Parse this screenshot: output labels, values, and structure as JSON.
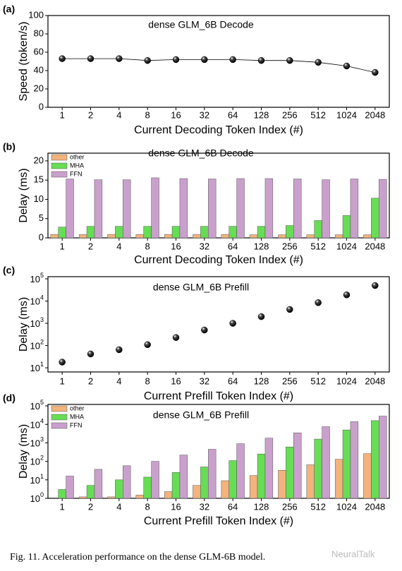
{
  "chart_data": [
    {
      "type": "line",
      "panel": "(a)",
      "annotation": "dense GLM_6B  Decode",
      "y_label": "Speed (token/s)",
      "x_label": "Current Decoding Token Index (#)",
      "categories": [
        "1",
        "2",
        "4",
        "8",
        "16",
        "32",
        "64",
        "128",
        "256",
        "512",
        "1024",
        "2048"
      ],
      "values": [
        53,
        53,
        53,
        51,
        52,
        52,
        52,
        51,
        51,
        49,
        45,
        38
      ],
      "color": "#000000",
      "ylim": [
        0,
        100
      ],
      "yticks": [
        0,
        20,
        40,
        60,
        80,
        100
      ]
    },
    {
      "type": "bar",
      "panel": "(b)",
      "annotation": "dense GLM_6B  Decode",
      "y_label": "Delay (ms)",
      "x_label": "Current Decoding Token Index (#)",
      "categories": [
        "1",
        "2",
        "4",
        "8",
        "16",
        "32",
        "64",
        "128",
        "256",
        "512",
        "1024",
        "2048"
      ],
      "series": [
        {
          "name": "other",
          "color": "#f2b37c",
          "values": [
            0.9,
            0.9,
            0.9,
            0.9,
            0.9,
            0.9,
            0.9,
            0.8,
            0.8,
            0.8,
            0.8,
            0.8
          ]
        },
        {
          "name": "MHA",
          "color": "#66dd55",
          "values": [
            2.8,
            3.0,
            3.0,
            3.0,
            3.0,
            3.0,
            3.0,
            3.0,
            3.2,
            4.5,
            5.8,
            10.3
          ]
        },
        {
          "name": "FFN",
          "color": "#c9a0cc",
          "values": [
            15.3,
            15.1,
            15.1,
            15.6,
            15.4,
            15.3,
            15.4,
            15.4,
            15.3,
            15.1,
            15.3,
            15.2
          ]
        }
      ],
      "ylim": [
        0,
        22
      ],
      "yticks": [
        0,
        5,
        10,
        15,
        20
      ],
      "legend": "upper-left"
    },
    {
      "type": "scatter",
      "panel": "(c)",
      "annotation": "dense GLM_6B  Prefill",
      "y_label": "Delay (ms)",
      "x_label": "Current Prefill Token Index (#)",
      "categories": [
        "1",
        "2",
        "4",
        "8",
        "16",
        "32",
        "64",
        "128",
        "256",
        "512",
        "1024",
        "2048"
      ],
      "values": [
        18,
        42,
        65,
        110,
        230,
        500,
        1000,
        2000,
        4200,
        8500,
        19000,
        50000
      ],
      "color": "#000000",
      "log_y": true,
      "ylim": [
        6.5,
        125000
      ],
      "yticks": [
        {
          "value": 10,
          "label": "10",
          "sup": "1"
        },
        {
          "value": 100,
          "label": "10",
          "sup": "2"
        },
        {
          "value": 1000,
          "label": "10",
          "sup": "3"
        },
        {
          "value": 10000,
          "label": "10",
          "sup": "4"
        },
        {
          "value": 100000,
          "label": "10",
          "sup": "5"
        }
      ]
    },
    {
      "type": "bar",
      "panel": "(d)",
      "annotation": "dense GLM_6B  Prefill",
      "y_label": "Delay (ms)",
      "x_label": "Current Prefill Token Index (#)",
      "categories": [
        "1",
        "2",
        "4",
        "8",
        "16",
        "32",
        "64",
        "128",
        "256",
        "512",
        "1024",
        "2048"
      ],
      "series": [
        {
          "name": "other",
          "color": "#f2b37c",
          "values": [
            1,
            1.2,
            1.2,
            1.5,
            2.3,
            5,
            9,
            17,
            33,
            65,
            130,
            260
          ]
        },
        {
          "name": "MHA",
          "color": "#66dd55",
          "values": [
            3,
            5,
            10,
            14,
            25,
            50,
            110,
            250,
            600,
            1600,
            5000,
            16000
          ]
        },
        {
          "name": "FFN",
          "color": "#c9a0cc",
          "values": [
            16,
            37,
            58,
            100,
            220,
            450,
            900,
            1800,
            3500,
            7500,
            14000,
            28000
          ]
        }
      ],
      "log_y": true,
      "ylim": [
        1,
        120000
      ],
      "legend": "upper-left",
      "yticks": [
        {
          "value": 1,
          "label": "10",
          "sup": "0"
        },
        {
          "value": 10,
          "label": "10",
          "sup": "1"
        },
        {
          "value": 100,
          "label": "10",
          "sup": "2"
        },
        {
          "value": 1000,
          "label": "10",
          "sup": "3"
        },
        {
          "value": 10000,
          "label": "10",
          "sup": "4"
        },
        {
          "value": 100000,
          "label": "10",
          "sup": "5"
        }
      ]
    }
  ],
  "caption": "Fig. 11.    Acceleration performance on the dense GLM-6B model.",
  "watermark": "NeuralTalk"
}
